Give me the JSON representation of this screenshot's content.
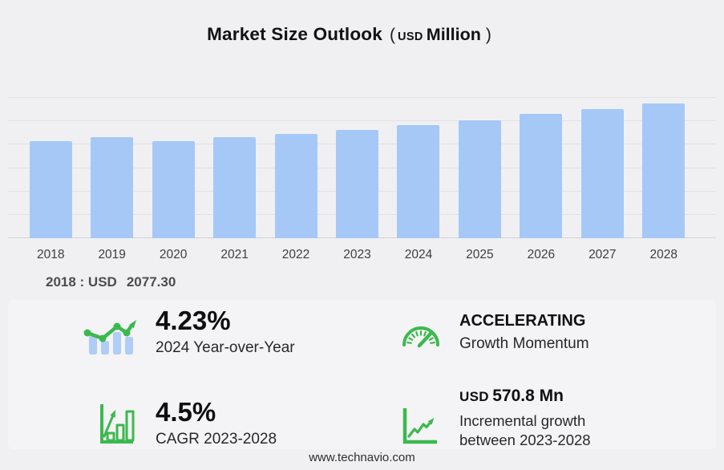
{
  "title": {
    "main": "Market Size Outlook",
    "open_paren": "(",
    "currency": "USD",
    "unit": "Million",
    "close_paren": ")"
  },
  "chart_data": {
    "type": "bar",
    "title": "Market Size Outlook (USD Million)",
    "categories": [
      "2018",
      "2019",
      "2020",
      "2021",
      "2022",
      "2023",
      "2024",
      "2025",
      "2026",
      "2027",
      "2028"
    ],
    "values": [
      2077.3,
      2160,
      2070,
      2165,
      2225,
      2318.6,
      2416.7,
      2525,
      2655,
      2765,
      2889.4
    ],
    "xlabel": "",
    "ylabel": "",
    "ylim": [
      0,
      3000
    ],
    "gridline_step": 500,
    "grid": true,
    "legend": false,
    "bar_color": "#a6c8f7"
  },
  "annotation": {
    "prefix": "2018 : USD",
    "value": "2077.30"
  },
  "stats": [
    {
      "id": "yoy",
      "icon": "trend-bars-icon",
      "value": "4.23%",
      "label": "2024 Year-over-Year"
    },
    {
      "id": "momentum",
      "icon": "gauge-icon",
      "value": "ACCELERATING",
      "label": "Growth Momentum"
    },
    {
      "id": "cagr",
      "icon": "bar-growth-icon",
      "value": "4.5%",
      "label": "CAGR 2023-2028"
    },
    {
      "id": "incremental",
      "icon": "line-growth-icon",
      "currency": "USD",
      "value": "570.8 Mn",
      "label": "Incremental growth between 2023-2028"
    }
  ],
  "footer": {
    "website": "www.technavio.com"
  },
  "colors": {
    "bar_blue": "#a6c8f7",
    "accent_green": "#3cb94e",
    "icon_bar_blue": "#afcdf6",
    "background": "#f0f0f2"
  }
}
